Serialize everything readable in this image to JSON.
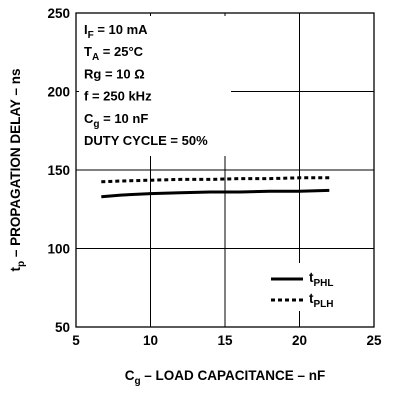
{
  "chart_data": {
    "type": "line",
    "title": "",
    "xlabel": {
      "main": "C",
      "sub": "g",
      "rest": " – LOAD CAPACITANCE – nF"
    },
    "ylabel": {
      "main": "t",
      "sub": "p",
      "rest": " – PROPAGATION DELAY – ns"
    },
    "xlim": [
      5,
      25
    ],
    "ylim": [
      50,
      250
    ],
    "xticks": [
      "5",
      "10",
      "15",
      "20",
      "25"
    ],
    "xtick_values": [
      5,
      10,
      15,
      20,
      25
    ],
    "yticks": [
      "50",
      "100",
      "150",
      "200",
      "250"
    ],
    "ytick_values": [
      50,
      100,
      150,
      200,
      250
    ],
    "grid": true,
    "legend_placement": "bottom-right",
    "conditions": [
      {
        "main": "I",
        "sub": "F",
        "rest": " = 10 mA"
      },
      {
        "main": "T",
        "sub": "A",
        "rest": " = 25°C"
      },
      {
        "main": "Rg = 10 Ω",
        "sub": "",
        "rest": ""
      },
      {
        "main": "f = 250 kHz",
        "sub": "",
        "rest": ""
      },
      {
        "main": "C",
        "sub": "g",
        "rest": " = 10 nF"
      },
      {
        "main": "DUTY CYCLE = 50%",
        "sub": "",
        "rest": ""
      }
    ],
    "series": [
      {
        "name": "tPHL",
        "name_main": "t",
        "name_sub": "PHL",
        "style": "solid",
        "x": [
          6.7,
          8,
          10,
          12,
          14,
          16,
          18,
          20,
          22
        ],
        "y": [
          133,
          134,
          135,
          135.5,
          136,
          136,
          136.5,
          136.5,
          137
        ]
      },
      {
        "name": "tPLH",
        "name_main": "t",
        "name_sub": "PLH",
        "style": "dotted",
        "x": [
          6.7,
          8,
          10,
          12,
          14,
          16,
          18,
          20,
          22
        ],
        "y": [
          142.5,
          143,
          143.5,
          144,
          144,
          144.5,
          144.5,
          145,
          145
        ]
      }
    ],
    "colors": {
      "line": "#000000",
      "grid": "#000000",
      "background": "#ffffff"
    }
  }
}
